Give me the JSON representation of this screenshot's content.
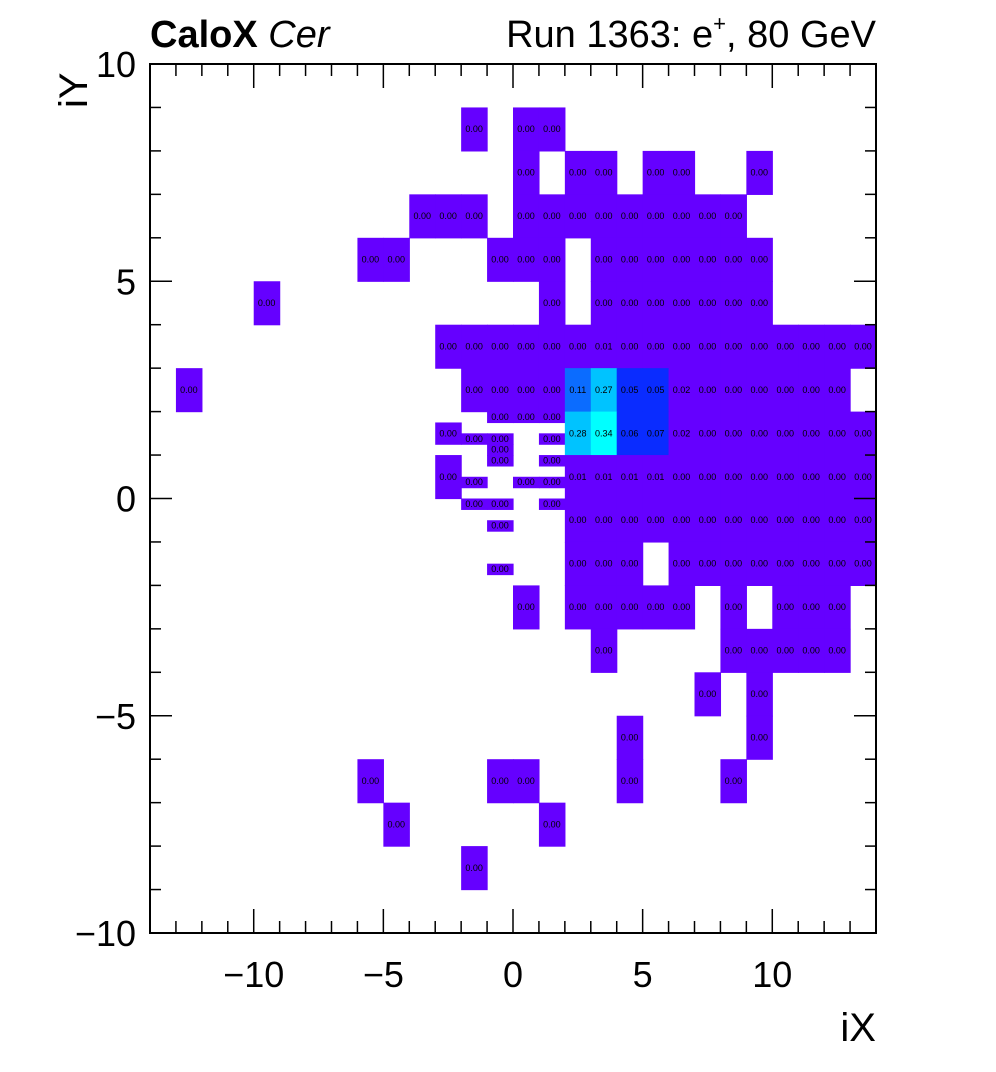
{
  "header": {
    "experiment": "CaloX",
    "channel": "Cer",
    "run_prefix": "Run 1363: e",
    "particle_charge": "+",
    "run_suffix": ", 80 GeV"
  },
  "chart_data": {
    "type": "heatmap",
    "xlabel": "iX",
    "ylabel": "iY",
    "xlim": [
      -14,
      14
    ],
    "ylim": [
      -10,
      10
    ],
    "x_ticks": [
      "−10",
      "−5",
      "0",
      "5",
      "10"
    ],
    "y_ticks": [
      "−10",
      "−5",
      "0",
      "5",
      "10"
    ],
    "grid": false,
    "value_format": "2 decimals",
    "cells": [
      {
        "x": -1.5,
        "y": 8.5,
        "w": 1,
        "h": 1,
        "v": 0
      },
      {
        "x": 0.5,
        "y": 8.5,
        "w": 1,
        "h": 1,
        "v": 0
      },
      {
        "x": 1.5,
        "y": 8.5,
        "w": 1,
        "h": 1,
        "v": 0
      },
      {
        "x": 0.5,
        "y": 7.5,
        "w": 1,
        "h": 1,
        "v": 0
      },
      {
        "x": 2.5,
        "y": 7.5,
        "w": 1,
        "h": 1,
        "v": 0
      },
      {
        "x": 3.5,
        "y": 7.5,
        "w": 1,
        "h": 1,
        "v": 0
      },
      {
        "x": 5.5,
        "y": 7.5,
        "w": 1,
        "h": 1,
        "v": 0
      },
      {
        "x": 6.5,
        "y": 7.5,
        "w": 1,
        "h": 1,
        "v": 0
      },
      {
        "x": 9.5,
        "y": 7.5,
        "w": 1,
        "h": 1,
        "v": 0
      },
      {
        "x": -3.5,
        "y": 6.5,
        "w": 1,
        "h": 1,
        "v": 0
      },
      {
        "x": -2.5,
        "y": 6.5,
        "w": 1,
        "h": 1,
        "v": 0
      },
      {
        "x": -1.5,
        "y": 6.5,
        "w": 1,
        "h": 1,
        "v": 0
      },
      {
        "x": 0.5,
        "y": 6.5,
        "w": 1,
        "h": 1,
        "v": 0
      },
      {
        "x": 1.5,
        "y": 6.5,
        "w": 1,
        "h": 1,
        "v": 0
      },
      {
        "x": 2.5,
        "y": 6.5,
        "w": 1,
        "h": 1,
        "v": 0
      },
      {
        "x": 3.5,
        "y": 6.5,
        "w": 1,
        "h": 1,
        "v": 0
      },
      {
        "x": 4.5,
        "y": 6.5,
        "w": 1,
        "h": 1,
        "v": 0
      },
      {
        "x": 5.5,
        "y": 6.5,
        "w": 1,
        "h": 1,
        "v": 0
      },
      {
        "x": 6.5,
        "y": 6.5,
        "w": 1,
        "h": 1,
        "v": 0
      },
      {
        "x": 7.5,
        "y": 6.5,
        "w": 1,
        "h": 1,
        "v": 0
      },
      {
        "x": 8.5,
        "y": 6.5,
        "w": 1,
        "h": 1,
        "v": 0
      },
      {
        "x": -5.5,
        "y": 5.5,
        "w": 1,
        "h": 1,
        "v": 0
      },
      {
        "x": -4.5,
        "y": 5.5,
        "w": 1,
        "h": 1,
        "v": 0
      },
      {
        "x": -0.5,
        "y": 5.5,
        "w": 1,
        "h": 1,
        "v": 0
      },
      {
        "x": 0.5,
        "y": 5.5,
        "w": 1,
        "h": 1,
        "v": 0
      },
      {
        "x": 1.5,
        "y": 5.5,
        "w": 1,
        "h": 1,
        "v": 0
      },
      {
        "x": 3.5,
        "y": 5.5,
        "w": 1,
        "h": 1,
        "v": 0
      },
      {
        "x": 4.5,
        "y": 5.5,
        "w": 1,
        "h": 1,
        "v": 0
      },
      {
        "x": 5.5,
        "y": 5.5,
        "w": 1,
        "h": 1,
        "v": 0
      },
      {
        "x": 6.5,
        "y": 5.5,
        "w": 1,
        "h": 1,
        "v": 0
      },
      {
        "x": 7.5,
        "y": 5.5,
        "w": 1,
        "h": 1,
        "v": 0
      },
      {
        "x": 8.5,
        "y": 5.5,
        "w": 1,
        "h": 1,
        "v": 0
      },
      {
        "x": 9.5,
        "y": 5.5,
        "w": 1,
        "h": 1,
        "v": 0
      },
      {
        "x": -9.5,
        "y": 4.5,
        "w": 1,
        "h": 1,
        "v": 0
      },
      {
        "x": 1.5,
        "y": 4.5,
        "w": 1,
        "h": 1,
        "v": 0
      },
      {
        "x": 3.5,
        "y": 4.5,
        "w": 1,
        "h": 1,
        "v": 0
      },
      {
        "x": 4.5,
        "y": 4.5,
        "w": 1,
        "h": 1,
        "v": 0
      },
      {
        "x": 5.5,
        "y": 4.5,
        "w": 1,
        "h": 1,
        "v": 0
      },
      {
        "x": 6.5,
        "y": 4.5,
        "w": 1,
        "h": 1,
        "v": 0
      },
      {
        "x": 7.5,
        "y": 4.5,
        "w": 1,
        "h": 1,
        "v": 0
      },
      {
        "x": 8.5,
        "y": 4.5,
        "w": 1,
        "h": 1,
        "v": 0
      },
      {
        "x": 9.5,
        "y": 4.5,
        "w": 1,
        "h": 1,
        "v": 0
      },
      {
        "x": -2.5,
        "y": 3.5,
        "w": 1,
        "h": 1,
        "v": 0
      },
      {
        "x": -1.5,
        "y": 3.5,
        "w": 1,
        "h": 1,
        "v": 0
      },
      {
        "x": -0.5,
        "y": 3.5,
        "w": 1,
        "h": 1,
        "v": 0
      },
      {
        "x": 0.5,
        "y": 3.5,
        "w": 1,
        "h": 1,
        "v": 0
      },
      {
        "x": 1.5,
        "y": 3.5,
        "w": 1,
        "h": 1,
        "v": 0
      },
      {
        "x": 2.5,
        "y": 3.5,
        "w": 1,
        "h": 1,
        "v": 0
      },
      {
        "x": 3.5,
        "y": 3.5,
        "w": 1,
        "h": 1,
        "v": 0.01
      },
      {
        "x": 4.5,
        "y": 3.5,
        "w": 1,
        "h": 1,
        "v": 0
      },
      {
        "x": 5.5,
        "y": 3.5,
        "w": 1,
        "h": 1,
        "v": 0
      },
      {
        "x": 6.5,
        "y": 3.5,
        "w": 1,
        "h": 1,
        "v": 0
      },
      {
        "x": 7.5,
        "y": 3.5,
        "w": 1,
        "h": 1,
        "v": 0
      },
      {
        "x": 8.5,
        "y": 3.5,
        "w": 1,
        "h": 1,
        "v": 0
      },
      {
        "x": 9.5,
        "y": 3.5,
        "w": 1,
        "h": 1,
        "v": 0
      },
      {
        "x": 10.5,
        "y": 3.5,
        "w": 1,
        "h": 1,
        "v": 0
      },
      {
        "x": 11.5,
        "y": 3.5,
        "w": 1,
        "h": 1,
        "v": 0
      },
      {
        "x": 12.5,
        "y": 3.5,
        "w": 1,
        "h": 1,
        "v": 0
      },
      {
        "x": 13.5,
        "y": 3.5,
        "w": 1,
        "h": 1,
        "v": 0
      },
      {
        "x": -12.5,
        "y": 2.5,
        "w": 1,
        "h": 1,
        "v": 0
      },
      {
        "x": -1.5,
        "y": 2.5,
        "w": 1,
        "h": 1,
        "v": 0
      },
      {
        "x": -0.5,
        "y": 2.5,
        "w": 1,
        "h": 1,
        "v": 0
      },
      {
        "x": 0.5,
        "y": 2.5,
        "w": 1,
        "h": 1,
        "v": 0
      },
      {
        "x": 1.5,
        "y": 2.5,
        "w": 1,
        "h": 1,
        "v": 0
      },
      {
        "x": 2.5,
        "y": 2.5,
        "w": 1,
        "h": 1,
        "v": 0.11
      },
      {
        "x": 3.5,
        "y": 2.5,
        "w": 1,
        "h": 1,
        "v": 0.27
      },
      {
        "x": 4.5,
        "y": 2.5,
        "w": 1,
        "h": 1,
        "v": 0.05
      },
      {
        "x": 5.5,
        "y": 2.5,
        "w": 1,
        "h": 1,
        "v": 0.05
      },
      {
        "x": 6.5,
        "y": 2.5,
        "w": 1,
        "h": 1,
        "v": 0.02
      },
      {
        "x": 7.5,
        "y": 2.5,
        "w": 1,
        "h": 1,
        "v": 0
      },
      {
        "x": 8.5,
        "y": 2.5,
        "w": 1,
        "h": 1,
        "v": 0
      },
      {
        "x": 9.5,
        "y": 2.5,
        "w": 1,
        "h": 1,
        "v": 0
      },
      {
        "x": 10.5,
        "y": 2.5,
        "w": 1,
        "h": 1,
        "v": 0
      },
      {
        "x": 11.5,
        "y": 2.5,
        "w": 1,
        "h": 1,
        "v": 0
      },
      {
        "x": 12.5,
        "y": 2.5,
        "w": 1,
        "h": 1,
        "v": 0
      },
      {
        "x": -0.5,
        "y": 1.875,
        "w": 1,
        "h": 0.25,
        "v": 0
      },
      {
        "x": 0.5,
        "y": 1.875,
        "w": 1,
        "h": 0.25,
        "v": 0
      },
      {
        "x": 1.5,
        "y": 1.875,
        "w": 1,
        "h": 0.25,
        "v": 0
      },
      {
        "x": -2.5,
        "y": 1.5,
        "w": 1,
        "h": 0.5,
        "v": 0
      },
      {
        "x": -1.5,
        "y": 1.375,
        "w": 1,
        "h": 0.25,
        "v": 0
      },
      {
        "x": -0.5,
        "y": 1.375,
        "w": 1,
        "h": 0.25,
        "v": 0
      },
      {
        "x": 1.5,
        "y": 1.375,
        "w": 1,
        "h": 0.25,
        "v": 0
      },
      {
        "x": -0.5,
        "y": 1.125,
        "w": 1,
        "h": 0.25,
        "v": 0
      },
      {
        "x": -0.5,
        "y": 0.875,
        "w": 1,
        "h": 0.25,
        "v": 0
      },
      {
        "x": 1.5,
        "y": 0.875,
        "w": 1,
        "h": 0.25,
        "v": 0
      },
      {
        "x": 2.5,
        "y": 1.5,
        "w": 1,
        "h": 1,
        "v": 0.28
      },
      {
        "x": 3.5,
        "y": 1.5,
        "w": 1,
        "h": 1,
        "v": 0.34
      },
      {
        "x": 4.5,
        "y": 1.5,
        "w": 1,
        "h": 1,
        "v": 0.06
      },
      {
        "x": 5.5,
        "y": 1.5,
        "w": 1,
        "h": 1,
        "v": 0.07
      },
      {
        "x": 6.5,
        "y": 1.5,
        "w": 1,
        "h": 1,
        "v": 0.02
      },
      {
        "x": 7.5,
        "y": 1.5,
        "w": 1,
        "h": 1,
        "v": 0
      },
      {
        "x": 8.5,
        "y": 1.5,
        "w": 1,
        "h": 1,
        "v": 0
      },
      {
        "x": 9.5,
        "y": 1.5,
        "w": 1,
        "h": 1,
        "v": 0
      },
      {
        "x": 10.5,
        "y": 1.5,
        "w": 1,
        "h": 1,
        "v": 0
      },
      {
        "x": 11.5,
        "y": 1.5,
        "w": 1,
        "h": 1,
        "v": 0
      },
      {
        "x": 12.5,
        "y": 1.5,
        "w": 1,
        "h": 1,
        "v": 0
      },
      {
        "x": 13.5,
        "y": 1.5,
        "w": 1,
        "h": 1,
        "v": 0
      },
      {
        "x": -2.5,
        "y": 0.5,
        "w": 1,
        "h": 1,
        "v": 0
      },
      {
        "x": -1.5,
        "y": 0.375,
        "w": 1,
        "h": 0.25,
        "v": 0
      },
      {
        "x": 0.5,
        "y": 0.375,
        "w": 1,
        "h": 0.25,
        "v": 0
      },
      {
        "x": 1.5,
        "y": 0.375,
        "w": 1,
        "h": 0.25,
        "v": 0
      },
      {
        "x": -1.5,
        "y": -0.125,
        "w": 1,
        "h": 0.25,
        "v": 0
      },
      {
        "x": -0.5,
        "y": -0.125,
        "w": 1,
        "h": 0.25,
        "v": 0
      },
      {
        "x": 1.5,
        "y": -0.125,
        "w": 1,
        "h": 0.25,
        "v": 0
      },
      {
        "x": 2.5,
        "y": 0.5,
        "w": 1,
        "h": 1,
        "v": 0.01
      },
      {
        "x": 3.5,
        "y": 0.5,
        "w": 1,
        "h": 1,
        "v": 0.01
      },
      {
        "x": 4.5,
        "y": 0.5,
        "w": 1,
        "h": 1,
        "v": 0.01
      },
      {
        "x": 5.5,
        "y": 0.5,
        "w": 1,
        "h": 1,
        "v": 0.01
      },
      {
        "x": 6.5,
        "y": 0.5,
        "w": 1,
        "h": 1,
        "v": 0
      },
      {
        "x": 7.5,
        "y": 0.5,
        "w": 1,
        "h": 1,
        "v": 0
      },
      {
        "x": 8.5,
        "y": 0.5,
        "w": 1,
        "h": 1,
        "v": 0
      },
      {
        "x": 9.5,
        "y": 0.5,
        "w": 1,
        "h": 1,
        "v": 0
      },
      {
        "x": 10.5,
        "y": 0.5,
        "w": 1,
        "h": 1,
        "v": 0
      },
      {
        "x": 11.5,
        "y": 0.5,
        "w": 1,
        "h": 1,
        "v": 0
      },
      {
        "x": 12.5,
        "y": 0.5,
        "w": 1,
        "h": 1,
        "v": 0
      },
      {
        "x": 13.5,
        "y": 0.5,
        "w": 1,
        "h": 1,
        "v": 0
      },
      {
        "x": -0.5,
        "y": -0.625,
        "w": 1,
        "h": 0.25,
        "v": 0
      },
      {
        "x": 2.5,
        "y": -0.5,
        "w": 1,
        "h": 1,
        "v": 0
      },
      {
        "x": 3.5,
        "y": -0.5,
        "w": 1,
        "h": 1,
        "v": 0
      },
      {
        "x": 4.5,
        "y": -0.5,
        "w": 1,
        "h": 1,
        "v": 0
      },
      {
        "x": 5.5,
        "y": -0.5,
        "w": 1,
        "h": 1,
        "v": 0
      },
      {
        "x": 6.5,
        "y": -0.5,
        "w": 1,
        "h": 1,
        "v": 0
      },
      {
        "x": 7.5,
        "y": -0.5,
        "w": 1,
        "h": 1,
        "v": 0
      },
      {
        "x": 8.5,
        "y": -0.5,
        "w": 1,
        "h": 1,
        "v": 0
      },
      {
        "x": 9.5,
        "y": -0.5,
        "w": 1,
        "h": 1,
        "v": 0
      },
      {
        "x": 10.5,
        "y": -0.5,
        "w": 1,
        "h": 1,
        "v": 0
      },
      {
        "x": 11.5,
        "y": -0.5,
        "w": 1,
        "h": 1,
        "v": 0
      },
      {
        "x": 12.5,
        "y": -0.5,
        "w": 1,
        "h": 1,
        "v": 0
      },
      {
        "x": 13.5,
        "y": -0.5,
        "w": 1,
        "h": 1,
        "v": 0
      },
      {
        "x": -0.5,
        "y": -1.625,
        "w": 1,
        "h": 0.25,
        "v": 0
      },
      {
        "x": 2.5,
        "y": -1.5,
        "w": 1,
        "h": 1,
        "v": 0
      },
      {
        "x": 3.5,
        "y": -1.5,
        "w": 1,
        "h": 1,
        "v": 0
      },
      {
        "x": 4.5,
        "y": -1.5,
        "w": 1,
        "h": 1,
        "v": 0
      },
      {
        "x": 6.5,
        "y": -1.5,
        "w": 1,
        "h": 1,
        "v": 0
      },
      {
        "x": 7.5,
        "y": -1.5,
        "w": 1,
        "h": 1,
        "v": 0
      },
      {
        "x": 8.5,
        "y": -1.5,
        "w": 1,
        "h": 1,
        "v": 0
      },
      {
        "x": 9.5,
        "y": -1.5,
        "w": 1,
        "h": 1,
        "v": 0
      },
      {
        "x": 10.5,
        "y": -1.5,
        "w": 1,
        "h": 1,
        "v": 0
      },
      {
        "x": 11.5,
        "y": -1.5,
        "w": 1,
        "h": 1,
        "v": 0
      },
      {
        "x": 12.5,
        "y": -1.5,
        "w": 1,
        "h": 1,
        "v": 0
      },
      {
        "x": 13.5,
        "y": -1.5,
        "w": 1,
        "h": 1,
        "v": 0
      },
      {
        "x": 0.5,
        "y": -2.5,
        "w": 1,
        "h": 1,
        "v": 0
      },
      {
        "x": 2.5,
        "y": -2.5,
        "w": 1,
        "h": 1,
        "v": 0
      },
      {
        "x": 3.5,
        "y": -2.5,
        "w": 1,
        "h": 1,
        "v": 0
      },
      {
        "x": 4.5,
        "y": -2.5,
        "w": 1,
        "h": 1,
        "v": 0
      },
      {
        "x": 5.5,
        "y": -2.5,
        "w": 1,
        "h": 1,
        "v": 0
      },
      {
        "x": 6.5,
        "y": -2.5,
        "w": 1,
        "h": 1,
        "v": 0
      },
      {
        "x": 8.5,
        "y": -2.5,
        "w": 1,
        "h": 1,
        "v": 0
      },
      {
        "x": 10.5,
        "y": -2.5,
        "w": 1,
        "h": 1,
        "v": 0
      },
      {
        "x": 11.5,
        "y": -2.5,
        "w": 1,
        "h": 1,
        "v": 0
      },
      {
        "x": 12.5,
        "y": -2.5,
        "w": 1,
        "h": 1,
        "v": 0
      },
      {
        "x": 3.5,
        "y": -3.5,
        "w": 1,
        "h": 1,
        "v": 0
      },
      {
        "x": 8.5,
        "y": -3.5,
        "w": 1,
        "h": 1,
        "v": 0
      },
      {
        "x": 9.5,
        "y": -3.5,
        "w": 1,
        "h": 1,
        "v": 0
      },
      {
        "x": 10.5,
        "y": -3.5,
        "w": 1,
        "h": 1,
        "v": 0
      },
      {
        "x": 11.5,
        "y": -3.5,
        "w": 1,
        "h": 1,
        "v": 0
      },
      {
        "x": 12.5,
        "y": -3.5,
        "w": 1,
        "h": 1,
        "v": 0
      },
      {
        "x": 7.5,
        "y": -4.5,
        "w": 1,
        "h": 1,
        "v": 0
      },
      {
        "x": 9.5,
        "y": -4.5,
        "w": 1,
        "h": 1,
        "v": 0
      },
      {
        "x": 4.5,
        "y": -5.5,
        "w": 1,
        "h": 1,
        "v": 0
      },
      {
        "x": 9.5,
        "y": -5.5,
        "w": 1,
        "h": 1,
        "v": 0
      },
      {
        "x": -5.5,
        "y": -6.5,
        "w": 1,
        "h": 1,
        "v": 0
      },
      {
        "x": -0.5,
        "y": -6.5,
        "w": 1,
        "h": 1,
        "v": 0
      },
      {
        "x": 0.5,
        "y": -6.5,
        "w": 1,
        "h": 1,
        "v": 0
      },
      {
        "x": 4.5,
        "y": -6.5,
        "w": 1,
        "h": 1,
        "v": 0
      },
      {
        "x": 8.5,
        "y": -6.5,
        "w": 1,
        "h": 1,
        "v": 0
      },
      {
        "x": -4.5,
        "y": -7.5,
        "w": 1,
        "h": 1,
        "v": 0
      },
      {
        "x": 1.5,
        "y": -7.5,
        "w": 1,
        "h": 1,
        "v": 0
      },
      {
        "x": -1.5,
        "y": -8.5,
        "w": 1,
        "h": 1,
        "v": 0
      }
    ]
  },
  "colors": {
    "low": "#6500ff",
    "deep_blue": "#0a2cff",
    "mid_blue": "#0b6cff",
    "cyan_mid": "#00c3ff",
    "cyan_high": "#00ffff",
    "frame": "#000000"
  }
}
